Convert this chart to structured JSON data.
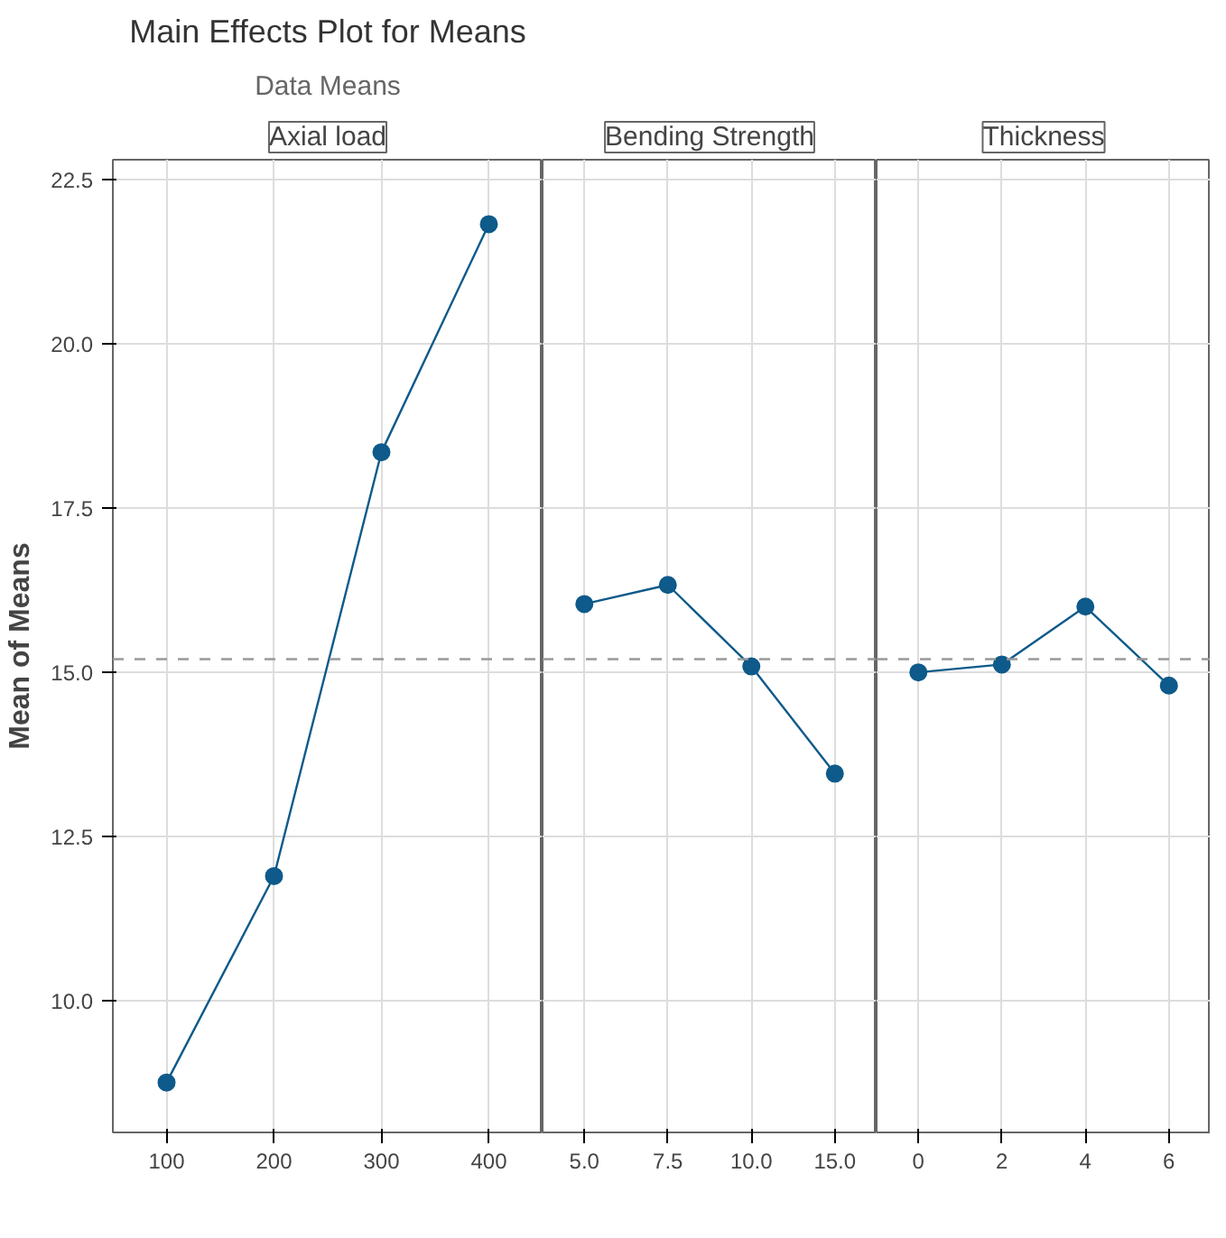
{
  "chart_data": [
    {
      "type": "line",
      "title": "Main Effects Plot for Means",
      "subtitle": "Data Means",
      "xlabel": "Axial load",
      "ylabel": "Mean of Means",
      "categories": [
        "100",
        "200",
        "300",
        "400"
      ],
      "series": [
        {
          "color": "#0e5a8a",
          "values": [
            8.76,
            11.9,
            18.35,
            21.82
          ]
        }
      ],
      "ylim": [
        8.0,
        22.8
      ],
      "yticks": [
        {
          "value": 10,
          "label": "10.0"
        },
        12.5,
        {
          "value": 15,
          "label": "15.0"
        },
        17.5,
        {
          "value": 20,
          "label": "20.0"
        },
        22.5
      ],
      "ref_lines": [
        {
          "axis": "y",
          "value": 15.2,
          "color": "#999999",
          "line_style": "dashed"
        }
      ],
      "grid": true,
      "marker": "circle",
      "line_style": "solid"
    },
    {
      "type": "line",
      "xlabel": "Bending Strength",
      "categories": [
        "5.0",
        "7.5",
        "10.0",
        "15.0"
      ],
      "series": [
        {
          "color": "#0e5a8a",
          "values": [
            16.04,
            16.33,
            15.09,
            13.46
          ]
        }
      ],
      "ylim": [
        8.0,
        22.8
      ],
      "yticks": [
        10,
        12.5,
        15,
        17.5,
        20,
        22.5
      ],
      "ref_lines": [
        {
          "axis": "y",
          "value": 15.2,
          "color": "#999999",
          "line_style": "dashed"
        }
      ],
      "grid": true,
      "marker": "circle",
      "line_style": "solid",
      "tick_labels": "x"
    },
    {
      "type": "line",
      "xlabel": "Thickness",
      "categories": [
        "0",
        "2",
        "4",
        "6"
      ],
      "series": [
        {
          "color": "#0e5a8a",
          "values": [
            15.0,
            15.12,
            16.0,
            14.8
          ]
        }
      ],
      "ylim": [
        8.0,
        22.8
      ],
      "yticks": [
        10,
        12.5,
        15,
        17.5,
        20,
        22.5
      ],
      "ref_lines": [
        {
          "axis": "y",
          "value": 15.2,
          "color": "#999999",
          "line_style": "dashed"
        }
      ],
      "grid": true,
      "marker": "circle",
      "line_style": "solid",
      "tick_labels": "x"
    }
  ]
}
